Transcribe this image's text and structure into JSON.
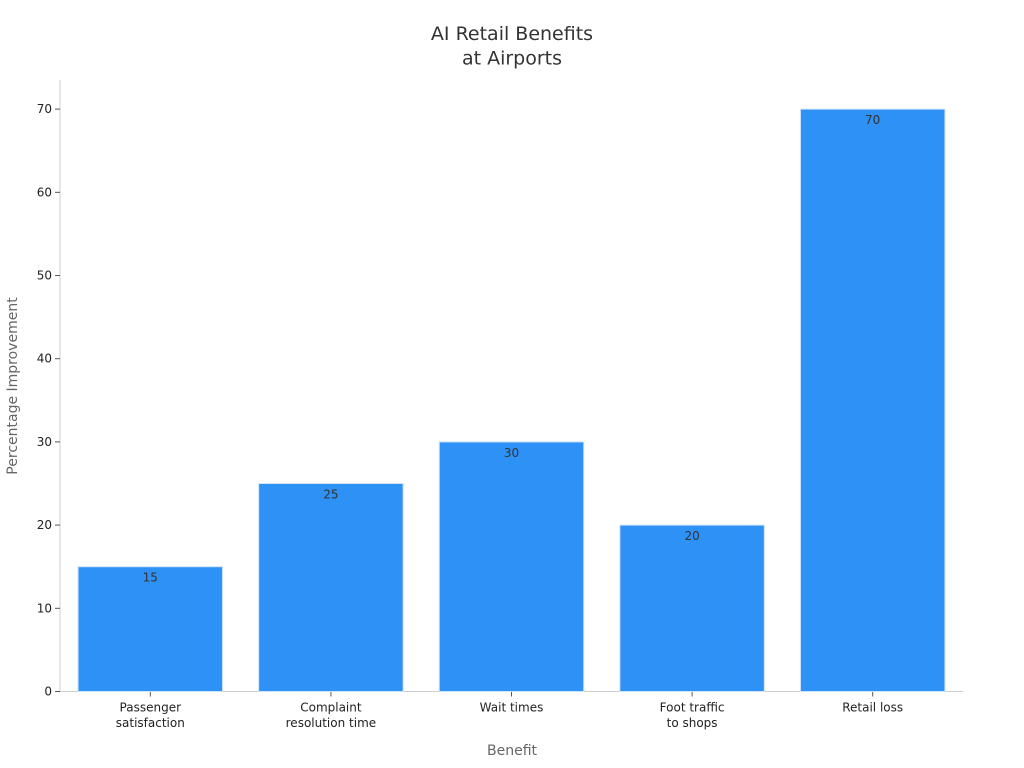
{
  "chart_data": {
    "type": "bar",
    "title": "AI Retail Benefits\nat Airports",
    "x_label": "Benefit",
    "y_label": "Percentage Improvement",
    "categories": [
      "Passenger\nsatisfaction",
      "Complaint\nresolution time",
      "Wait times",
      "Foot traffic\nto shops",
      "Retail loss"
    ],
    "values": [
      15,
      25,
      30,
      20,
      70
    ],
    "color": "#2e91f5",
    "ylim": [
      0,
      73.5
    ],
    "yticks": [
      0,
      10,
      20,
      30,
      40,
      50,
      60,
      70
    ],
    "grid": false
  }
}
